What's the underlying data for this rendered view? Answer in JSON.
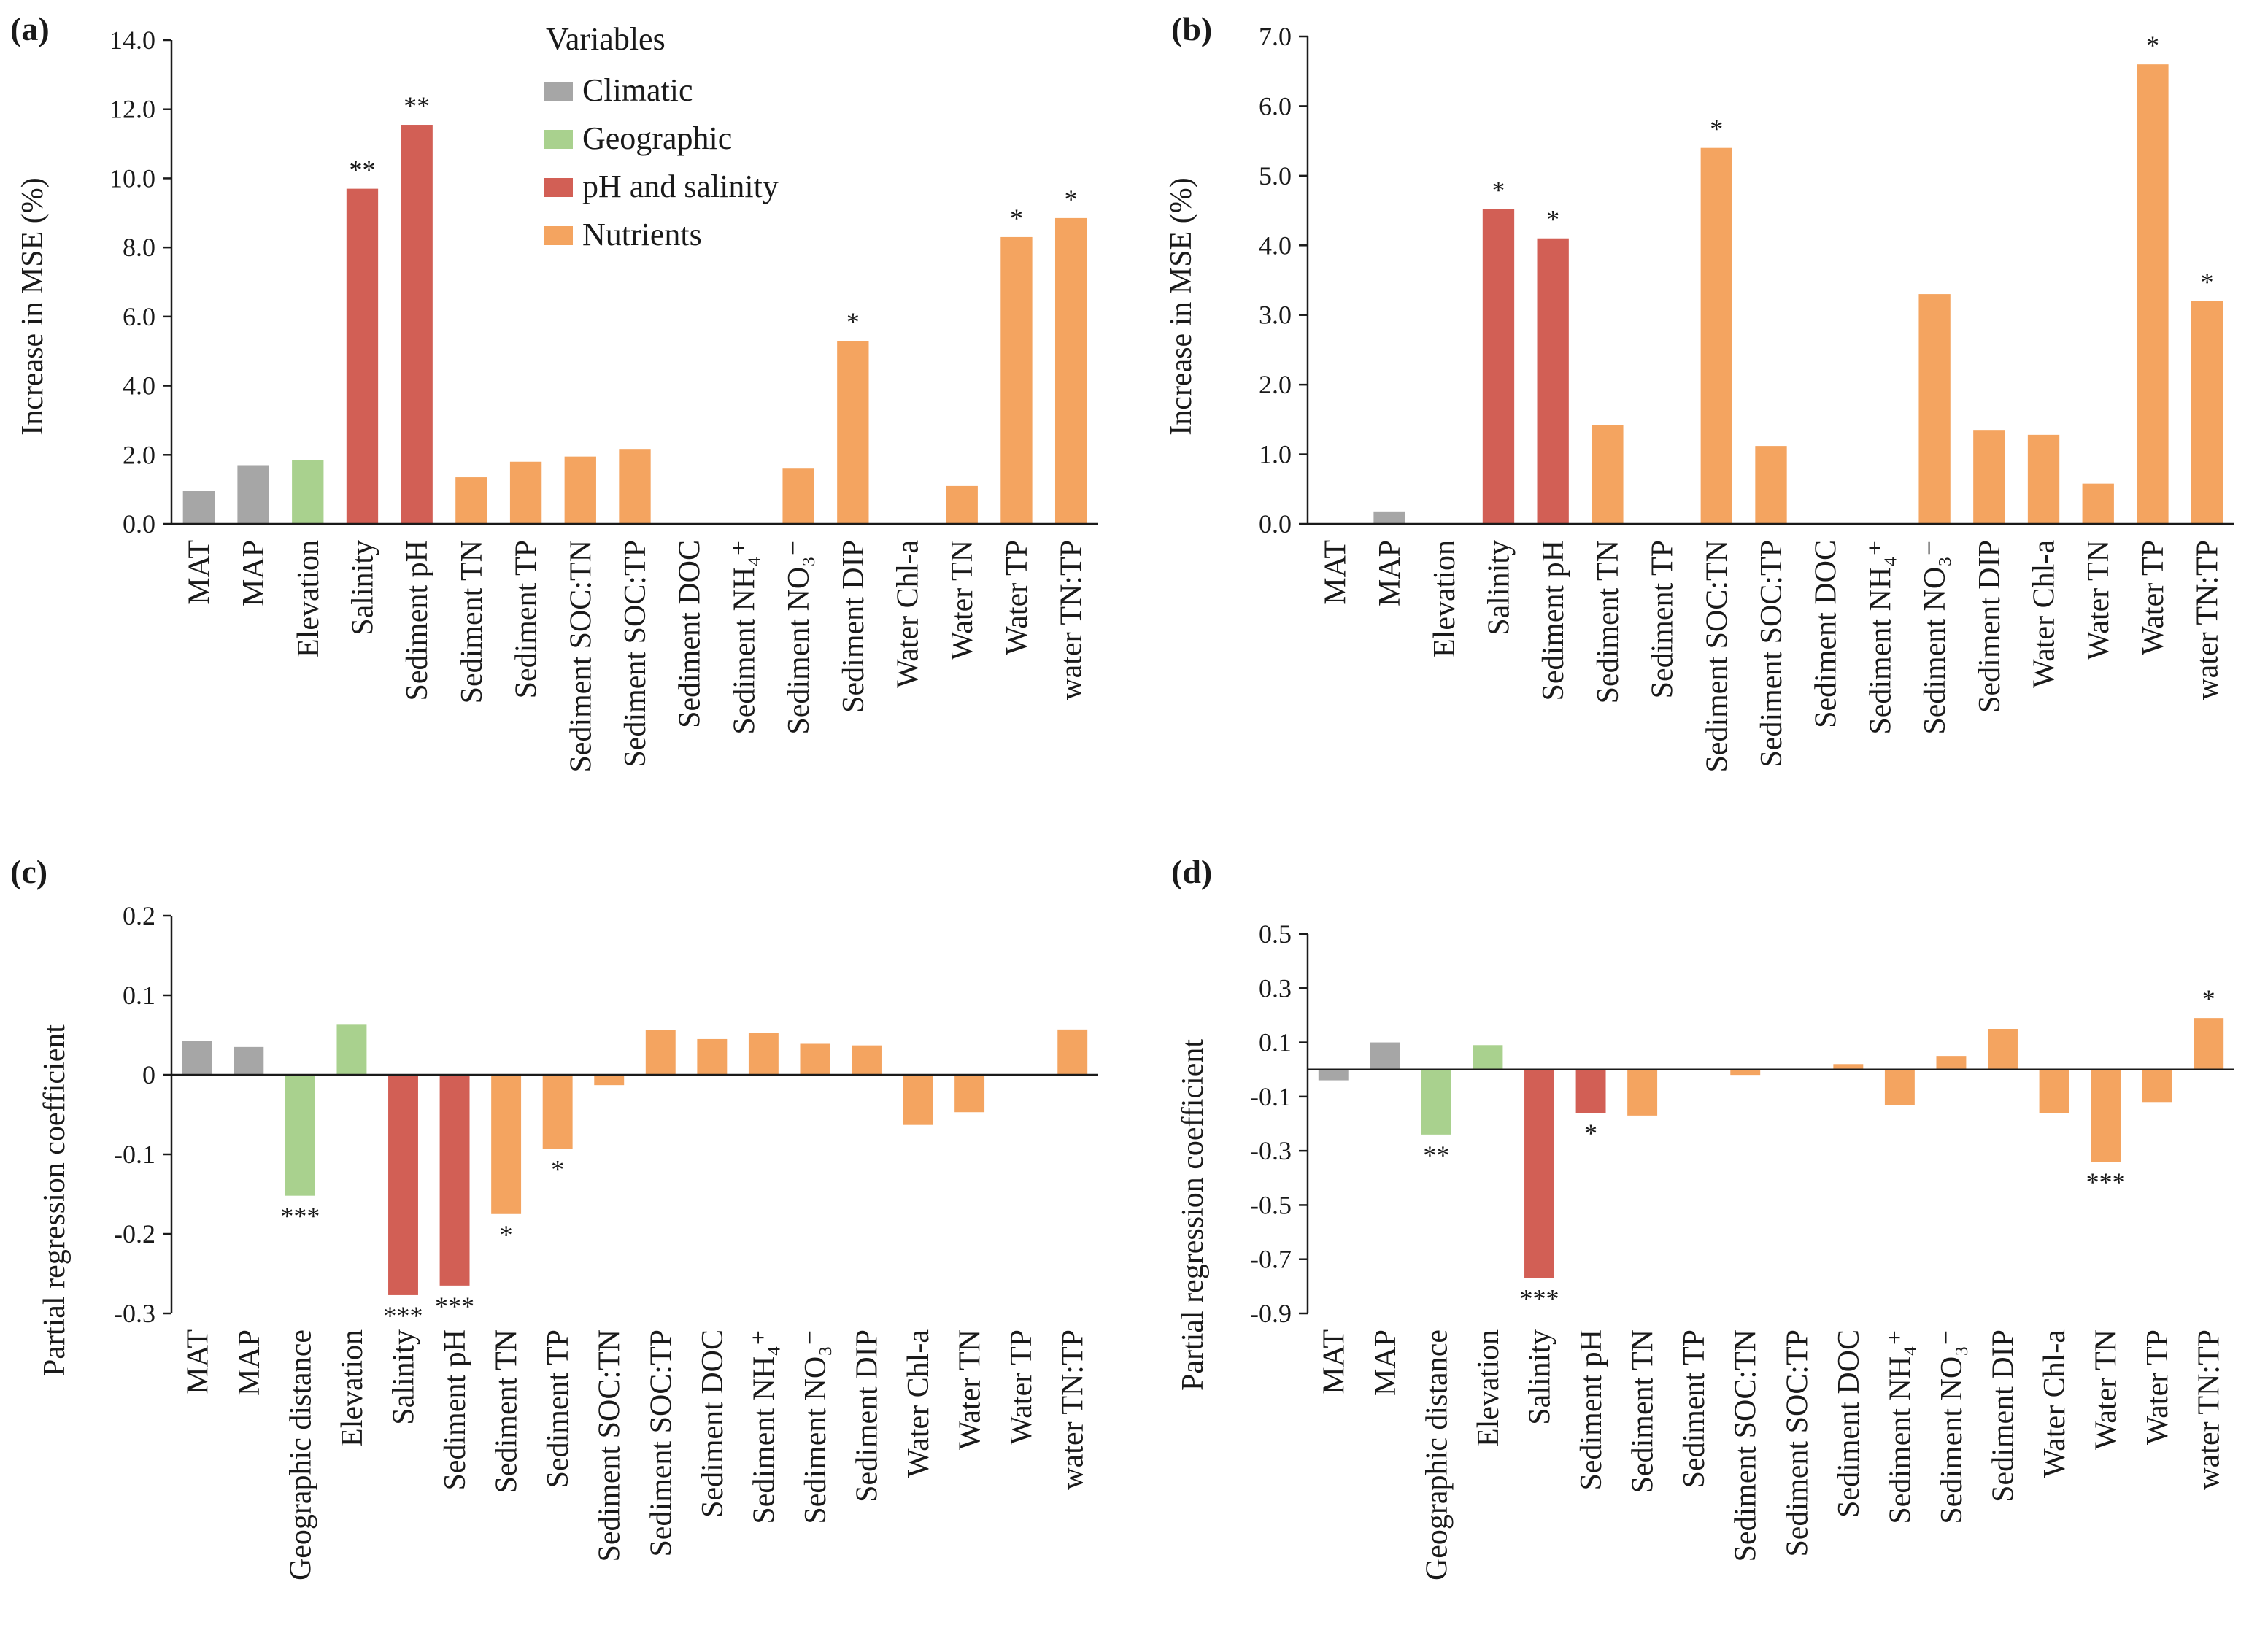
{
  "colors": {
    "Climatic": "#a6a6a6",
    "Geographic": "#a9d18e",
    "pH and salinity": "#d25f55",
    "Nutrients": "#f4a460"
  },
  "legend": {
    "title": "Variables",
    "items": [
      "Climatic",
      "Geographic",
      "pH and salinity",
      "Nutrients"
    ]
  },
  "chart_data": [
    {
      "panel": "(a)",
      "type": "bar",
      "ylabel": "Increase in MSE (%)",
      "ylim": [
        0,
        14
      ],
      "yticks": [
        "0.0",
        "2.0",
        "4.0",
        "6.0",
        "8.0",
        "10.0",
        "12.0",
        "14.0"
      ],
      "categories": [
        "MAT",
        "MAP",
        "Elevation",
        "Salinity",
        "Sediment pH",
        "Sediment TN",
        "Sediment TP",
        "Sediment SOC:TN",
        "Sediment SOC:TP",
        "Sediment DOC",
        "Sediment NH₄⁺",
        "Sediment NO₃⁻",
        "Sediment DIP",
        "Water Chl-a",
        "Water TN",
        "Water TP",
        "water TN:TP"
      ],
      "groups": [
        "Climatic",
        "Climatic",
        "Geographic",
        "pH and salinity",
        "pH and salinity",
        "Nutrients",
        "Nutrients",
        "Nutrients",
        "Nutrients",
        "Nutrients",
        "Nutrients",
        "Nutrients",
        "Nutrients",
        "Nutrients",
        "Nutrients",
        "Nutrients",
        "Nutrients"
      ],
      "values": [
        0.95,
        1.7,
        1.85,
        9.7,
        11.55,
        1.35,
        1.8,
        1.95,
        2.15,
        0,
        0,
        1.6,
        5.3,
        0,
        1.1,
        8.3,
        8.85
      ],
      "significance": [
        "",
        "",
        "",
        "**",
        "**",
        "",
        "",
        "",
        "",
        "",
        "",
        "",
        "*",
        "",
        "",
        "*",
        "*"
      ]
    },
    {
      "panel": "(b)",
      "type": "bar",
      "ylabel": "Increase in MSE (%)",
      "ylim": [
        0,
        7
      ],
      "yticks": [
        "0.0",
        "1.0",
        "2.0",
        "3.0",
        "4.0",
        "5.0",
        "6.0",
        "7.0"
      ],
      "categories": [
        "MAT",
        "MAP",
        "Elevation",
        "Salinity",
        "Sediment pH",
        "Sediment TN",
        "Sediment TP",
        "Sediment SOC:TN",
        "Sediment SOC:TP",
        "Sediment DOC",
        "Sediment NH₄⁺",
        "Sediment NO₃⁻",
        "Sediment DIP",
        "Water Chl-a",
        "Water TN",
        "Water TP",
        "water TN:TP"
      ],
      "groups": [
        "Climatic",
        "Climatic",
        "Geographic",
        "pH and salinity",
        "pH and salinity",
        "Nutrients",
        "Nutrients",
        "Nutrients",
        "Nutrients",
        "Nutrients",
        "Nutrients",
        "Nutrients",
        "Nutrients",
        "Nutrients",
        "Nutrients",
        "Nutrients",
        "Nutrients"
      ],
      "values": [
        0,
        0.18,
        0,
        4.52,
        4.1,
        1.42,
        0,
        5.4,
        1.12,
        0,
        0,
        3.3,
        1.35,
        1.28,
        0.58,
        6.6,
        3.2
      ],
      "significance": [
        "",
        "",
        "",
        "*",
        "*",
        "",
        "",
        "*",
        "",
        "",
        "",
        "",
        "",
        "",
        "",
        "*",
        "*"
      ]
    },
    {
      "panel": "(c)",
      "type": "bar",
      "ylabel": "Partial regression coefficient",
      "ylim": [
        -0.3,
        0.2
      ],
      "yticks": [
        "-0.3",
        "-0.2",
        "-0.1",
        "0",
        "0.1",
        "0.2"
      ],
      "categories": [
        "MAT",
        "MAP",
        "Geographic distance",
        "Elevation",
        "Salinity",
        "Sediment pH",
        "Sediment TN",
        "Sediment TP",
        "Sediment SOC:TN",
        "Sediment SOC:TP",
        "Sediment DOC",
        "Sediment NH₄⁺",
        "Sediment NO₃⁻",
        "Sediment DIP",
        "Water Chl-a",
        "Water TN",
        "Water TP",
        "water TN:TP"
      ],
      "groups": [
        "Climatic",
        "Climatic",
        "Geographic",
        "Geographic",
        "pH and salinity",
        "pH and salinity",
        "Nutrients",
        "Nutrients",
        "Nutrients",
        "Nutrients",
        "Nutrients",
        "Nutrients",
        "Nutrients",
        "Nutrients",
        "Nutrients",
        "Nutrients",
        "Nutrients",
        "Nutrients"
      ],
      "values": [
        0.043,
        0.035,
        -0.152,
        0.063,
        -0.277,
        -0.265,
        -0.175,
        -0.093,
        -0.013,
        0.056,
        0.045,
        0.053,
        0.039,
        0.037,
        -0.063,
        -0.047,
        0,
        0.057
      ],
      "significance": [
        "",
        "",
        "***",
        "",
        "***",
        "***",
        "*",
        "*",
        "",
        "",
        "",
        "",
        "",
        "",
        "",
        "",
        "",
        ""
      ]
    },
    {
      "panel": "(d)",
      "type": "bar",
      "ylabel": "Partial regression coefficient",
      "ylim": [
        -0.9,
        0.5
      ],
      "yticks": [
        "-0.9",
        "-0.7",
        "-0.5",
        "-0.3",
        "-0.1",
        "0.1",
        "0.3",
        "0.5"
      ],
      "categories": [
        "MAT",
        "MAP",
        "Geographic distance",
        "Elevation",
        "Salinity",
        "Sediment pH",
        "Sediment TN",
        "Sediment TP",
        "Sediment SOC:TN",
        "Sediment SOC:TP",
        "Sediment DOC",
        "Sediment NH₄⁺",
        "Sediment NO₃⁻",
        "Sediment DIP",
        "Water Chl-a",
        "Water TN",
        "Water TP",
        "water TN:TP"
      ],
      "groups": [
        "Climatic",
        "Climatic",
        "Geographic",
        "Geographic",
        "pH and salinity",
        "pH and salinity",
        "Nutrients",
        "Nutrients",
        "Nutrients",
        "Nutrients",
        "Nutrients",
        "Nutrients",
        "Nutrients",
        "Nutrients",
        "Nutrients",
        "Nutrients",
        "Nutrients",
        "Nutrients"
      ],
      "values": [
        -0.04,
        0.1,
        -0.24,
        0.09,
        -0.77,
        -0.16,
        -0.17,
        0,
        -0.02,
        0,
        0.02,
        -0.13,
        0.05,
        0.15,
        -0.16,
        -0.34,
        -0.12,
        0.19
      ],
      "significance": [
        "",
        "",
        "**",
        "",
        "***",
        "*",
        "",
        "",
        "",
        "",
        "",
        "",
        "",
        "",
        "",
        "***",
        "",
        "*"
      ]
    }
  ]
}
